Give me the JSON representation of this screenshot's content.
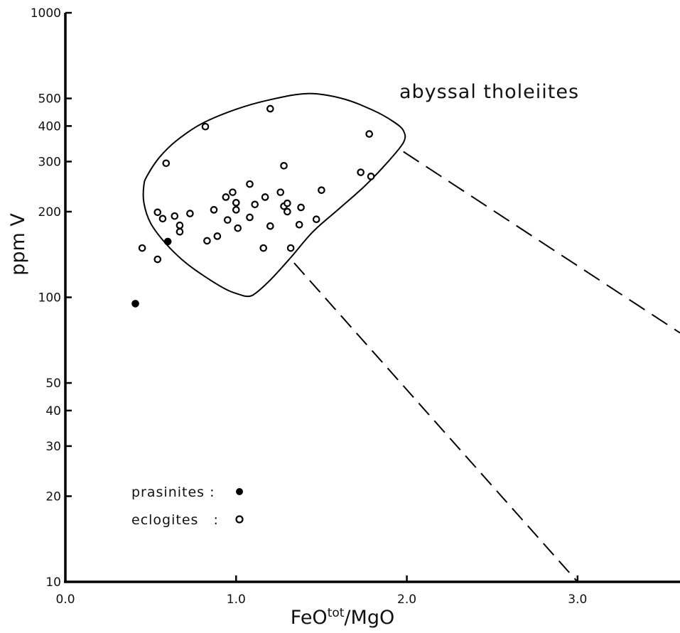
{
  "chart_data": {
    "type": "scatter",
    "title": "",
    "xlabel": "FeO",
    "xlabel_sup": "tot",
    "xlabel_suffix": "/MgO",
    "ylabel": "ppm V",
    "xlim": [
      0.0,
      3.6
    ],
    "ylim": [
      10,
      1000
    ],
    "yscale": "log",
    "grid": false,
    "x_ticks": [
      {
        "value": 0.0,
        "label": "0.0"
      },
      {
        "value": 1.0,
        "label": "1.0"
      },
      {
        "value": 2.0,
        "label": "2.0"
      },
      {
        "value": 3.0,
        "label": "3.0"
      }
    ],
    "y_ticks": [
      {
        "value": 1000,
        "label": "1000"
      },
      {
        "value": 500,
        "label": "500"
      },
      {
        "value": 400,
        "label": "400"
      },
      {
        "value": 300,
        "label": "300"
      },
      {
        "value": 200,
        "label": "200"
      },
      {
        "value": 100,
        "label": "100"
      },
      {
        "value": 50,
        "label": "50"
      },
      {
        "value": 40,
        "label": "40"
      },
      {
        "value": 30,
        "label": "30"
      },
      {
        "value": 20,
        "label": "20"
      },
      {
        "value": 10,
        "label": "10"
      }
    ],
    "region": {
      "label": "abyssal tholeiites",
      "outline": [
        [
          1.05,
          101
        ],
        [
          0.95,
          106
        ],
        [
          0.82,
          118
        ],
        [
          0.7,
          133
        ],
        [
          0.59,
          154
        ],
        [
          0.5,
          182
        ],
        [
          0.46,
          215
        ],
        [
          0.46,
          248
        ],
        [
          0.48,
          268
        ],
        [
          0.55,
          310
        ],
        [
          0.65,
          355
        ],
        [
          0.8,
          408
        ],
        [
          1.0,
          458
        ],
        [
          1.2,
          495
        ],
        [
          1.42,
          520
        ],
        [
          1.62,
          500
        ],
        [
          1.8,
          455
        ],
        [
          1.92,
          415
        ],
        [
          1.98,
          385
        ],
        [
          1.98,
          350
        ],
        [
          1.88,
          295
        ],
        [
          1.75,
          245
        ],
        [
          1.6,
          204
        ],
        [
          1.45,
          170
        ],
        [
          1.32,
          138
        ],
        [
          1.2,
          115
        ],
        [
          1.1,
          102
        ],
        [
          1.05,
          101
        ]
      ]
    },
    "dashed_lines": [
      {
        "from": [
          1.98,
          325
        ],
        "to": [
          3.6,
          75
        ]
      },
      {
        "from": [
          1.34,
          132
        ],
        "to": [
          3.0,
          10
        ]
      }
    ],
    "legend": {
      "placement": "bottom-left",
      "entries": [
        {
          "label": "prasinites :",
          "marker": "filled-circle"
        },
        {
          "label": "eclogites   :",
          "marker": "open-circle"
        }
      ]
    },
    "series": [
      {
        "name": "prasinites",
        "marker": "filled-circle",
        "points": [
          [
            0.41,
            95
          ],
          [
            0.6,
            157
          ]
        ]
      },
      {
        "name": "eclogites",
        "marker": "open-circle",
        "points": [
          [
            0.45,
            149
          ],
          [
            0.54,
            136
          ],
          [
            0.54,
            199
          ],
          [
            0.57,
            189
          ],
          [
            0.59,
            296
          ],
          [
            0.64,
            193
          ],
          [
            0.67,
            179
          ],
          [
            0.67,
            170
          ],
          [
            0.73,
            197
          ],
          [
            0.82,
            398
          ],
          [
            0.83,
            158
          ],
          [
            0.87,
            203
          ],
          [
            0.89,
            164
          ],
          [
            0.94,
            225
          ],
          [
            0.95,
            187
          ],
          [
            0.98,
            234
          ],
          [
            1.0,
            215
          ],
          [
            1.0,
            203
          ],
          [
            1.01,
            175
          ],
          [
            1.08,
            250
          ],
          [
            1.08,
            191
          ],
          [
            1.11,
            212
          ],
          [
            1.16,
            149
          ],
          [
            1.17,
            225
          ],
          [
            1.2,
            460
          ],
          [
            1.2,
            178
          ],
          [
            1.26,
            234
          ],
          [
            1.28,
            290
          ],
          [
            1.28,
            209
          ],
          [
            1.3,
            200
          ],
          [
            1.3,
            214
          ],
          [
            1.32,
            149
          ],
          [
            1.37,
            180
          ],
          [
            1.38,
            207
          ],
          [
            1.47,
            188
          ],
          [
            1.5,
            238
          ],
          [
            1.73,
            275
          ],
          [
            1.78,
            375
          ],
          [
            1.79,
            266
          ]
        ]
      }
    ]
  }
}
